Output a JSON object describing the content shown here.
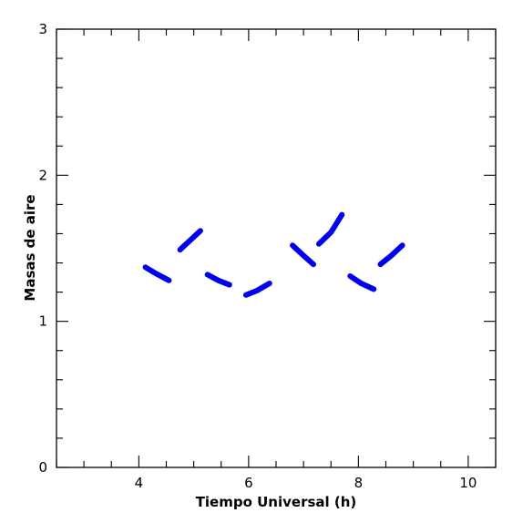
{
  "chart_data": {
    "type": "line",
    "title": "",
    "xlabel": "Tiempo Universal (h)",
    "ylabel": "Masas de aire",
    "xlim": [
      2.5,
      10.5
    ],
    "ylim": [
      0,
      3
    ],
    "x_ticks": [
      4,
      6,
      8,
      10
    ],
    "x_tick_labels": [
      "4",
      "6",
      "8",
      "10"
    ],
    "y_ticks": [
      0,
      1,
      2,
      3
    ],
    "y_tick_labels": [
      "0",
      "1",
      "2",
      "3"
    ],
    "grid": false,
    "series_color": "#0000ee",
    "series": [
      {
        "x": [
          4.12,
          4.3,
          4.55
        ],
        "y": [
          1.37,
          1.33,
          1.28
        ]
      },
      {
        "x": [
          4.75,
          4.95,
          5.12
        ],
        "y": [
          1.49,
          1.56,
          1.62
        ]
      },
      {
        "x": [
          5.25,
          5.45,
          5.65
        ],
        "y": [
          1.32,
          1.28,
          1.25
        ]
      },
      {
        "x": [
          5.95,
          6.15,
          6.38
        ],
        "y": [
          1.18,
          1.21,
          1.26
        ]
      },
      {
        "x": [
          6.8,
          7.0,
          7.18
        ],
        "y": [
          1.52,
          1.45,
          1.39
        ]
      },
      {
        "x": [
          7.28,
          7.5,
          7.7
        ],
        "y": [
          1.53,
          1.61,
          1.73
        ]
      },
      {
        "x": [
          7.85,
          8.05,
          8.28
        ],
        "y": [
          1.31,
          1.26,
          1.22
        ]
      },
      {
        "x": [
          8.4,
          8.6,
          8.8
        ],
        "y": [
          1.39,
          1.45,
          1.52
        ]
      }
    ]
  }
}
